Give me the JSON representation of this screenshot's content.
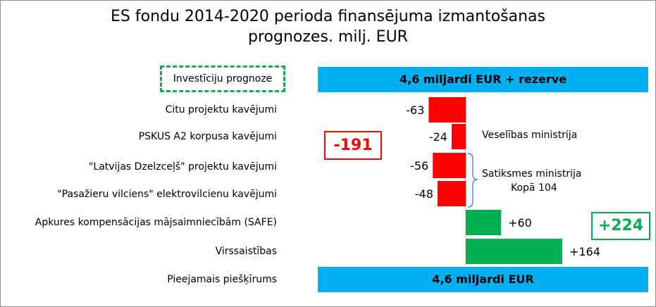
{
  "title": {
    "line1": "ES fondu 2014-2020 perioda finansējuma izmantošanas",
    "line2": "prognozes. milj. EUR"
  },
  "top_band": {
    "category": "Investīciju prognoze",
    "label": "4,6 miljardi EUR + rezerve"
  },
  "bottom_band": {
    "category": "Pieejamais piešķīrums",
    "label": "4,6 miljardi EUR"
  },
  "callouts": {
    "negative_total": "-191",
    "positive_total": "+224"
  },
  "annotations": {
    "health_ministry": "Veselības ministrija",
    "transport_ministry": "Satiksmes ministrija",
    "transport_total": "Kopā 104"
  },
  "colors": {
    "negative": "#ff0000",
    "positive": "#00b050",
    "band": "#00b0f0",
    "dashed_border": "#1aaa50",
    "bracket": "#4472c4"
  },
  "chart_data": {
    "type": "bar",
    "orientation": "horizontal",
    "title": "ES fondu 2014-2020 perioda finansējuma izmantošanas prognozes. milj. EUR",
    "categories": [
      "Citu projektu kavējumi",
      "PSKUS A2 korpusa kavējumi",
      "\"Latvijas Dzelzceļš\" projektu kavējumi",
      "\"Pasažieru vilciens\" elektrovilcienu kavējumi",
      "Apkures kompensācijas mājsaimniecībām (SAFE)",
      "Virssaistības"
    ],
    "values": [
      -63,
      -24,
      -56,
      -48,
      60,
      164
    ],
    "data_labels": [
      "-63",
      "-24",
      "-56",
      "-48",
      "+60",
      "+164"
    ],
    "grid": false,
    "legend": "none"
  }
}
